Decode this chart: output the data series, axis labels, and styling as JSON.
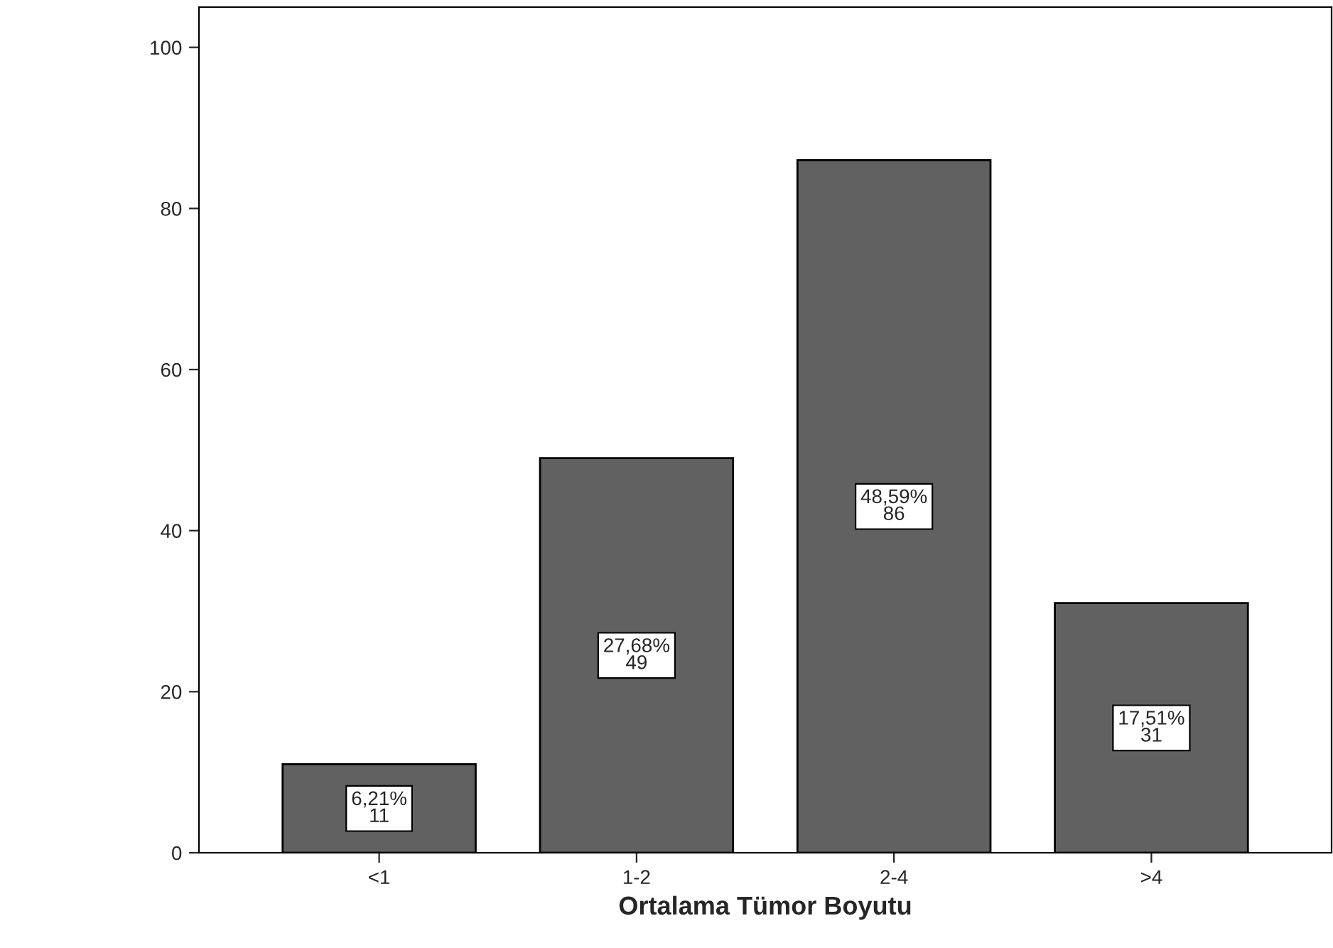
{
  "chart_data": {
    "type": "bar",
    "xlabel": "Ortalama Tümor Boyutu",
    "categories": [
      "<1",
      "1-2",
      "2-4",
      ">4"
    ],
    "values": [
      11,
      49,
      86,
      31
    ],
    "value_labels": [
      "6,21%\n11",
      "27,68%\n49",
      "48,59%\n86",
      "17,51%\n31"
    ],
    "color": "#616161",
    "ylim": [
      0,
      105
    ],
    "yticks": [
      0,
      20,
      40,
      60,
      80,
      100
    ],
    "grid": false
  }
}
